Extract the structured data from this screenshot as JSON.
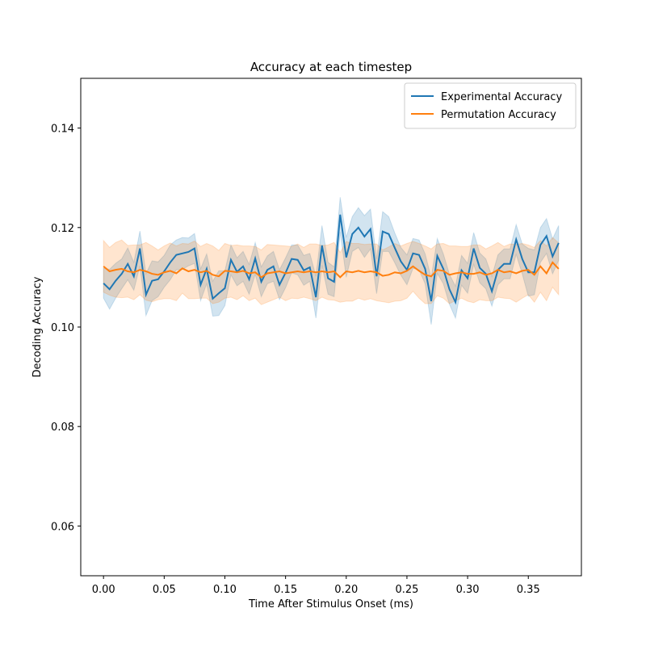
{
  "chart_data": {
    "type": "line",
    "title": "Accuracy at each timestep",
    "x_label": "Time After Stimulus Onset (ms)",
    "y_label": "Decoding Accuracy",
    "x": [
      0,
      0.005,
      0.01,
      0.015,
      0.02,
      0.025,
      0.03,
      0.035,
      0.04,
      0.045,
      0.05,
      0.055,
      0.06,
      0.065,
      0.07,
      0.075,
      0.08,
      0.085,
      0.09,
      0.095,
      0.1,
      0.105,
      0.11,
      0.115,
      0.12,
      0.125,
      0.13,
      0.135,
      0.14,
      0.145,
      0.15,
      0.155,
      0.16,
      0.165,
      0.17,
      0.175,
      0.18,
      0.185,
      0.19,
      0.195,
      0.2,
      0.205,
      0.21,
      0.215,
      0.22,
      0.225,
      0.23,
      0.235,
      0.24,
      0.245,
      0.25,
      0.255,
      0.26,
      0.265,
      0.27,
      0.275,
      0.28,
      0.285,
      0.29,
      0.295,
      0.3,
      0.305,
      0.31,
      0.315,
      0.32,
      0.325,
      0.33,
      0.335,
      0.34,
      0.345,
      0.35,
      0.355,
      0.36,
      0.365,
      0.37,
      0.375
    ],
    "series": [
      {
        "name": "Experimental Accuracy",
        "color": "#1f77b4",
        "values": [
          0.1088,
          0.1076,
          0.1093,
          0.1107,
          0.1127,
          0.1102,
          0.1158,
          0.1065,
          0.1093,
          0.1096,
          0.1112,
          0.113,
          0.1145,
          0.1148,
          0.1151,
          0.1158,
          0.1085,
          0.1117,
          0.1057,
          0.1068,
          0.1078,
          0.1135,
          0.1111,
          0.1122,
          0.1096,
          0.1138,
          0.1091,
          0.1115,
          0.1122,
          0.1085,
          0.1109,
          0.1137,
          0.1135,
          0.1114,
          0.112,
          0.106,
          0.1164,
          0.1098,
          0.1091,
          0.1226,
          0.114,
          0.1187,
          0.12,
          0.1182,
          0.1197,
          0.1102,
          0.1192,
          0.1187,
          0.1159,
          0.1132,
          0.1115,
          0.1148,
          0.1145,
          0.1117,
          0.1052,
          0.1143,
          0.1117,
          0.1076,
          0.105,
          0.1114,
          0.1098,
          0.1158,
          0.1119,
          0.1107,
          0.1072,
          0.1115,
          0.1127,
          0.1127,
          0.1176,
          0.1137,
          0.111,
          0.111,
          0.1165,
          0.1183,
          0.1142,
          0.1169
        ],
        "error": [
          0.003,
          0.004,
          0.0035,
          0.003,
          0.0032,
          0.0028,
          0.0035,
          0.0042,
          0.004,
          0.0035,
          0.0032,
          0.0035,
          0.003,
          0.0032,
          0.0028,
          0.003,
          0.0032,
          0.003,
          0.0035,
          0.0045,
          0.0035,
          0.003,
          0.0028,
          0.003,
          0.003,
          0.0032,
          0.003,
          0.0028,
          0.003,
          0.003,
          0.003,
          0.0028,
          0.003,
          0.003,
          0.0028,
          0.0042,
          0.004,
          0.0032,
          0.003,
          0.0035,
          0.004,
          0.0035,
          0.004,
          0.0042,
          0.004,
          0.0035,
          0.004,
          0.0035,
          0.003,
          0.0028,
          0.003,
          0.003,
          0.003,
          0.003,
          0.0047,
          0.0035,
          0.003,
          0.003,
          0.0032,
          0.003,
          0.003,
          0.0032,
          0.003,
          0.003,
          0.003,
          0.003,
          0.003,
          0.003,
          0.003,
          0.003,
          0.0048,
          0.0045,
          0.0035,
          0.0035,
          0.0035,
          0.0035
        ]
      },
      {
        "name": "Permutation Accuracy",
        "color": "#ff7f0e",
        "values": [
          0.1122,
          0.1112,
          0.1115,
          0.1117,
          0.1112,
          0.111,
          0.1115,
          0.1112,
          0.1107,
          0.1105,
          0.111,
          0.1113,
          0.1108,
          0.1118,
          0.1112,
          0.1115,
          0.111,
          0.1113,
          0.1105,
          0.1102,
          0.1113,
          0.1112,
          0.111,
          0.1113,
          0.1108,
          0.111,
          0.11,
          0.1108,
          0.111,
          0.1112,
          0.1108,
          0.111,
          0.1112,
          0.111,
          0.1112,
          0.111,
          0.1112,
          0.111,
          0.1112,
          0.11,
          0.1112,
          0.111,
          0.1113,
          0.111,
          0.1112,
          0.111,
          0.1103,
          0.1105,
          0.111,
          0.1108,
          0.1113,
          0.1122,
          0.1113,
          0.1105,
          0.1102,
          0.1115,
          0.1113,
          0.1105,
          0.1108,
          0.111,
          0.1107,
          0.1107,
          0.111,
          0.1105,
          0.1108,
          0.1115,
          0.111,
          0.1112,
          0.1108,
          0.1113,
          0.1115,
          0.1105,
          0.1122,
          0.1108,
          0.113,
          0.1117
        ],
        "error": [
          0.0052,
          0.0048,
          0.0055,
          0.0058,
          0.0052,
          0.0055,
          0.005,
          0.0058,
          0.0056,
          0.005,
          0.0053,
          0.0056,
          0.0055,
          0.005,
          0.0055,
          0.0058,
          0.0052,
          0.0055,
          0.0058,
          0.0052,
          0.0055,
          0.0052,
          0.0055,
          0.005,
          0.0055,
          0.0052,
          0.0055,
          0.0058,
          0.0055,
          0.0052,
          0.0055,
          0.0052,
          0.0055,
          0.005,
          0.0055,
          0.0057,
          0.0052,
          0.0055,
          0.0058,
          0.005,
          0.006,
          0.0058,
          0.0055,
          0.0056,
          0.0055,
          0.0057,
          0.0052,
          0.0056,
          0.0058,
          0.0055,
          0.0055,
          0.005,
          0.0055,
          0.0058,
          0.0055,
          0.0052,
          0.0055,
          0.0058,
          0.0055,
          0.0052,
          0.0055,
          0.0058,
          0.0055,
          0.0052,
          0.0055,
          0.0055,
          0.0052,
          0.0055,
          0.0058,
          0.0055,
          0.005,
          0.0055,
          0.0052,
          0.0055,
          0.005,
          0.0052
        ]
      }
    ],
    "xlim": [
      -0.01875,
      0.39375
    ],
    "ylim": [
      0.05,
      0.15
    ],
    "xticks": [
      {
        "value": 0,
        "label": "0.00"
      },
      0.05,
      {
        "value": 0.1,
        "label": "0.10"
      },
      0.15,
      {
        "value": 0.2,
        "label": "0.20"
      },
      0.25,
      {
        "value": 0.3,
        "label": "0.30"
      },
      0.35
    ],
    "yticks": [
      0.06,
      0.08,
      {
        "value": 0.1,
        "label": "0.10"
      },
      0.12,
      0.14
    ],
    "legend": "upper right",
    "grid": false
  }
}
